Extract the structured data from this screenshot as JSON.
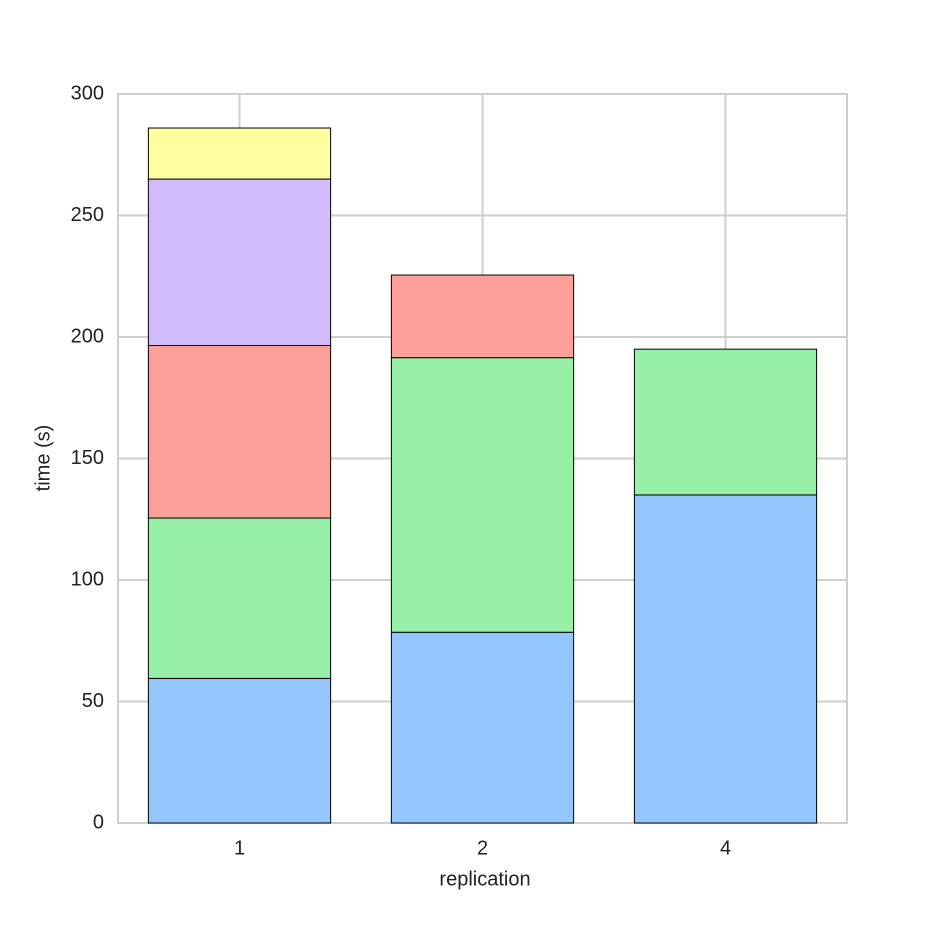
{
  "chart_data": {
    "type": "stacked_bar",
    "categories": [
      "1",
      "2",
      "4"
    ],
    "x_label": "replication",
    "y_label": "time (s)",
    "series": [
      {
        "color": "#93c6fd",
        "values": [
          59.5,
          78.5,
          135
        ]
      },
      {
        "color": "#98f0a8",
        "values": [
          66,
          113,
          60
        ]
      },
      {
        "color": "#fea09a",
        "values": [
          71,
          34,
          null
        ]
      },
      {
        "color": "#d0bbfd",
        "values": [
          68.5,
          null,
          null
        ]
      },
      {
        "color": "#fefda0",
        "values": [
          21,
          null,
          null
        ]
      }
    ],
    "ylim": [
      0,
      300
    ],
    "yticks": [
      0,
      50,
      100,
      150,
      200,
      250,
      300
    ],
    "grid": true
  }
}
